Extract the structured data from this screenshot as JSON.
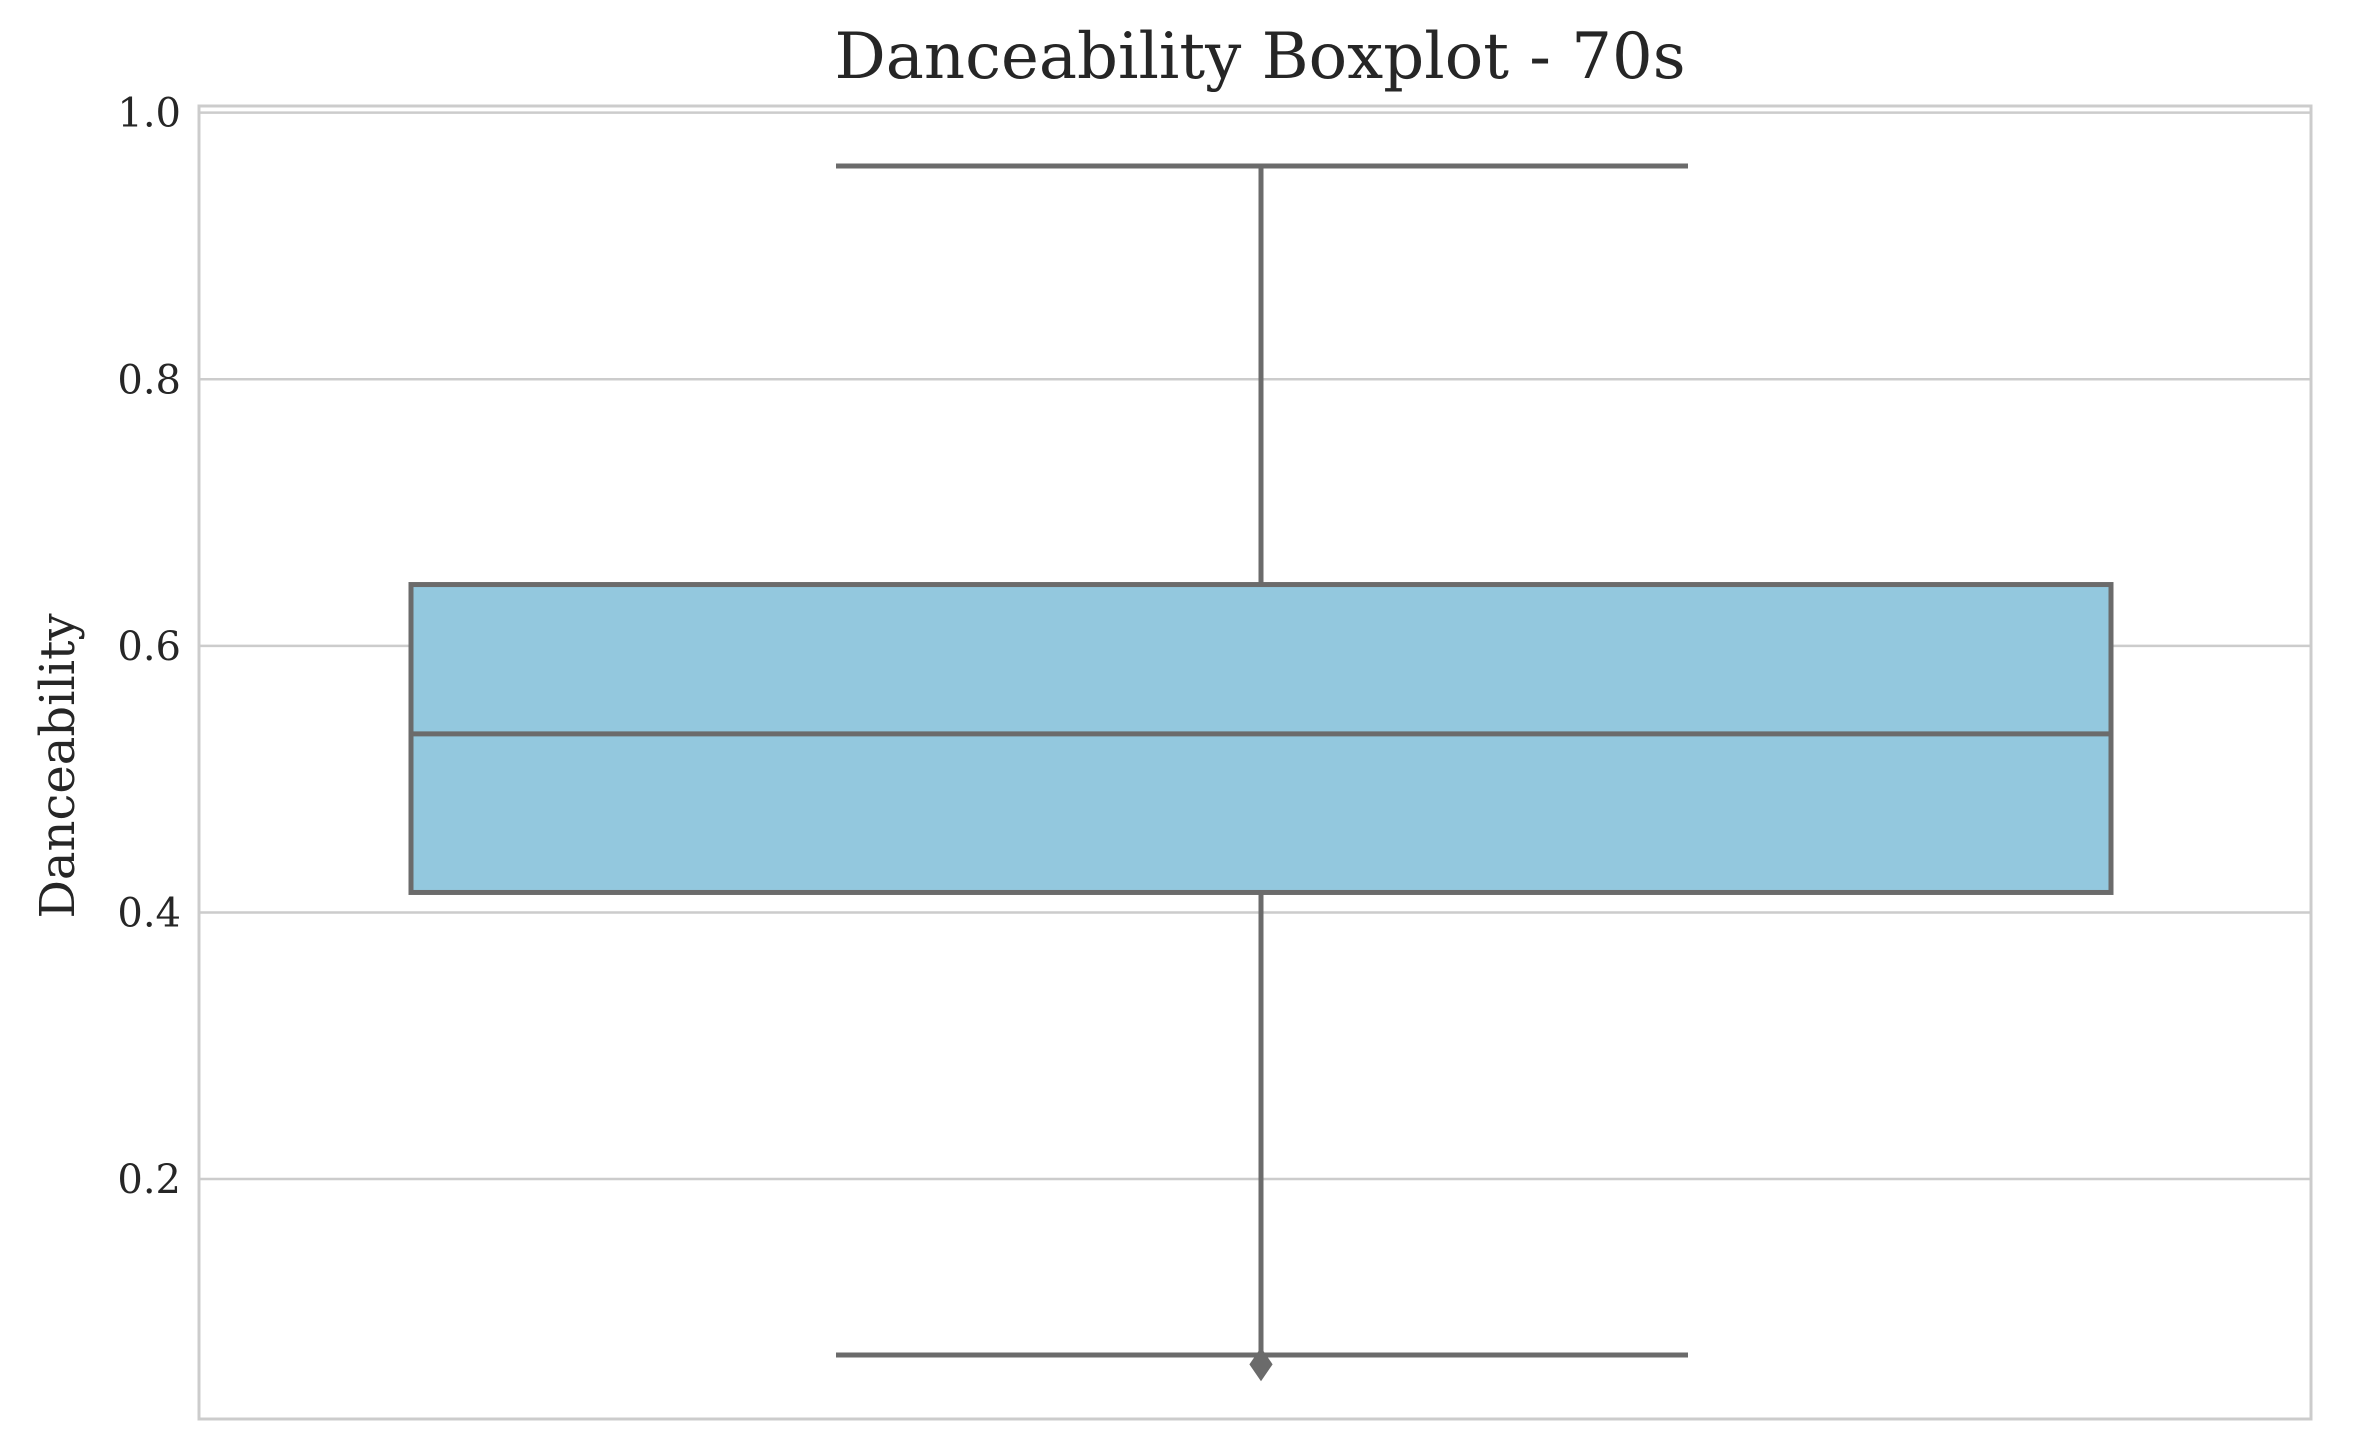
{
  "chart_data": {
    "type": "box",
    "title": "Danceability Boxplot - 70s",
    "xlabel": "",
    "ylabel": "Danceability",
    "ylim": [
      0.02,
      1.005
    ],
    "yticks": [
      0.2,
      0.4,
      0.6,
      0.8,
      1.0
    ],
    "ytick_labels": [
      "0.2",
      "0.4",
      "0.6",
      "0.8",
      "1.0"
    ],
    "grid": true,
    "box": {
      "whisker_low": 0.068,
      "q1": 0.415,
      "median": 0.534,
      "q3": 0.646,
      "whisker_high": 0.96,
      "outliers": [
        0.061
      ]
    },
    "colors": {
      "box_fill": "#93c8de",
      "box_line": "#6b6b6b",
      "grid": "#cccccc",
      "text": "#262626"
    }
  }
}
